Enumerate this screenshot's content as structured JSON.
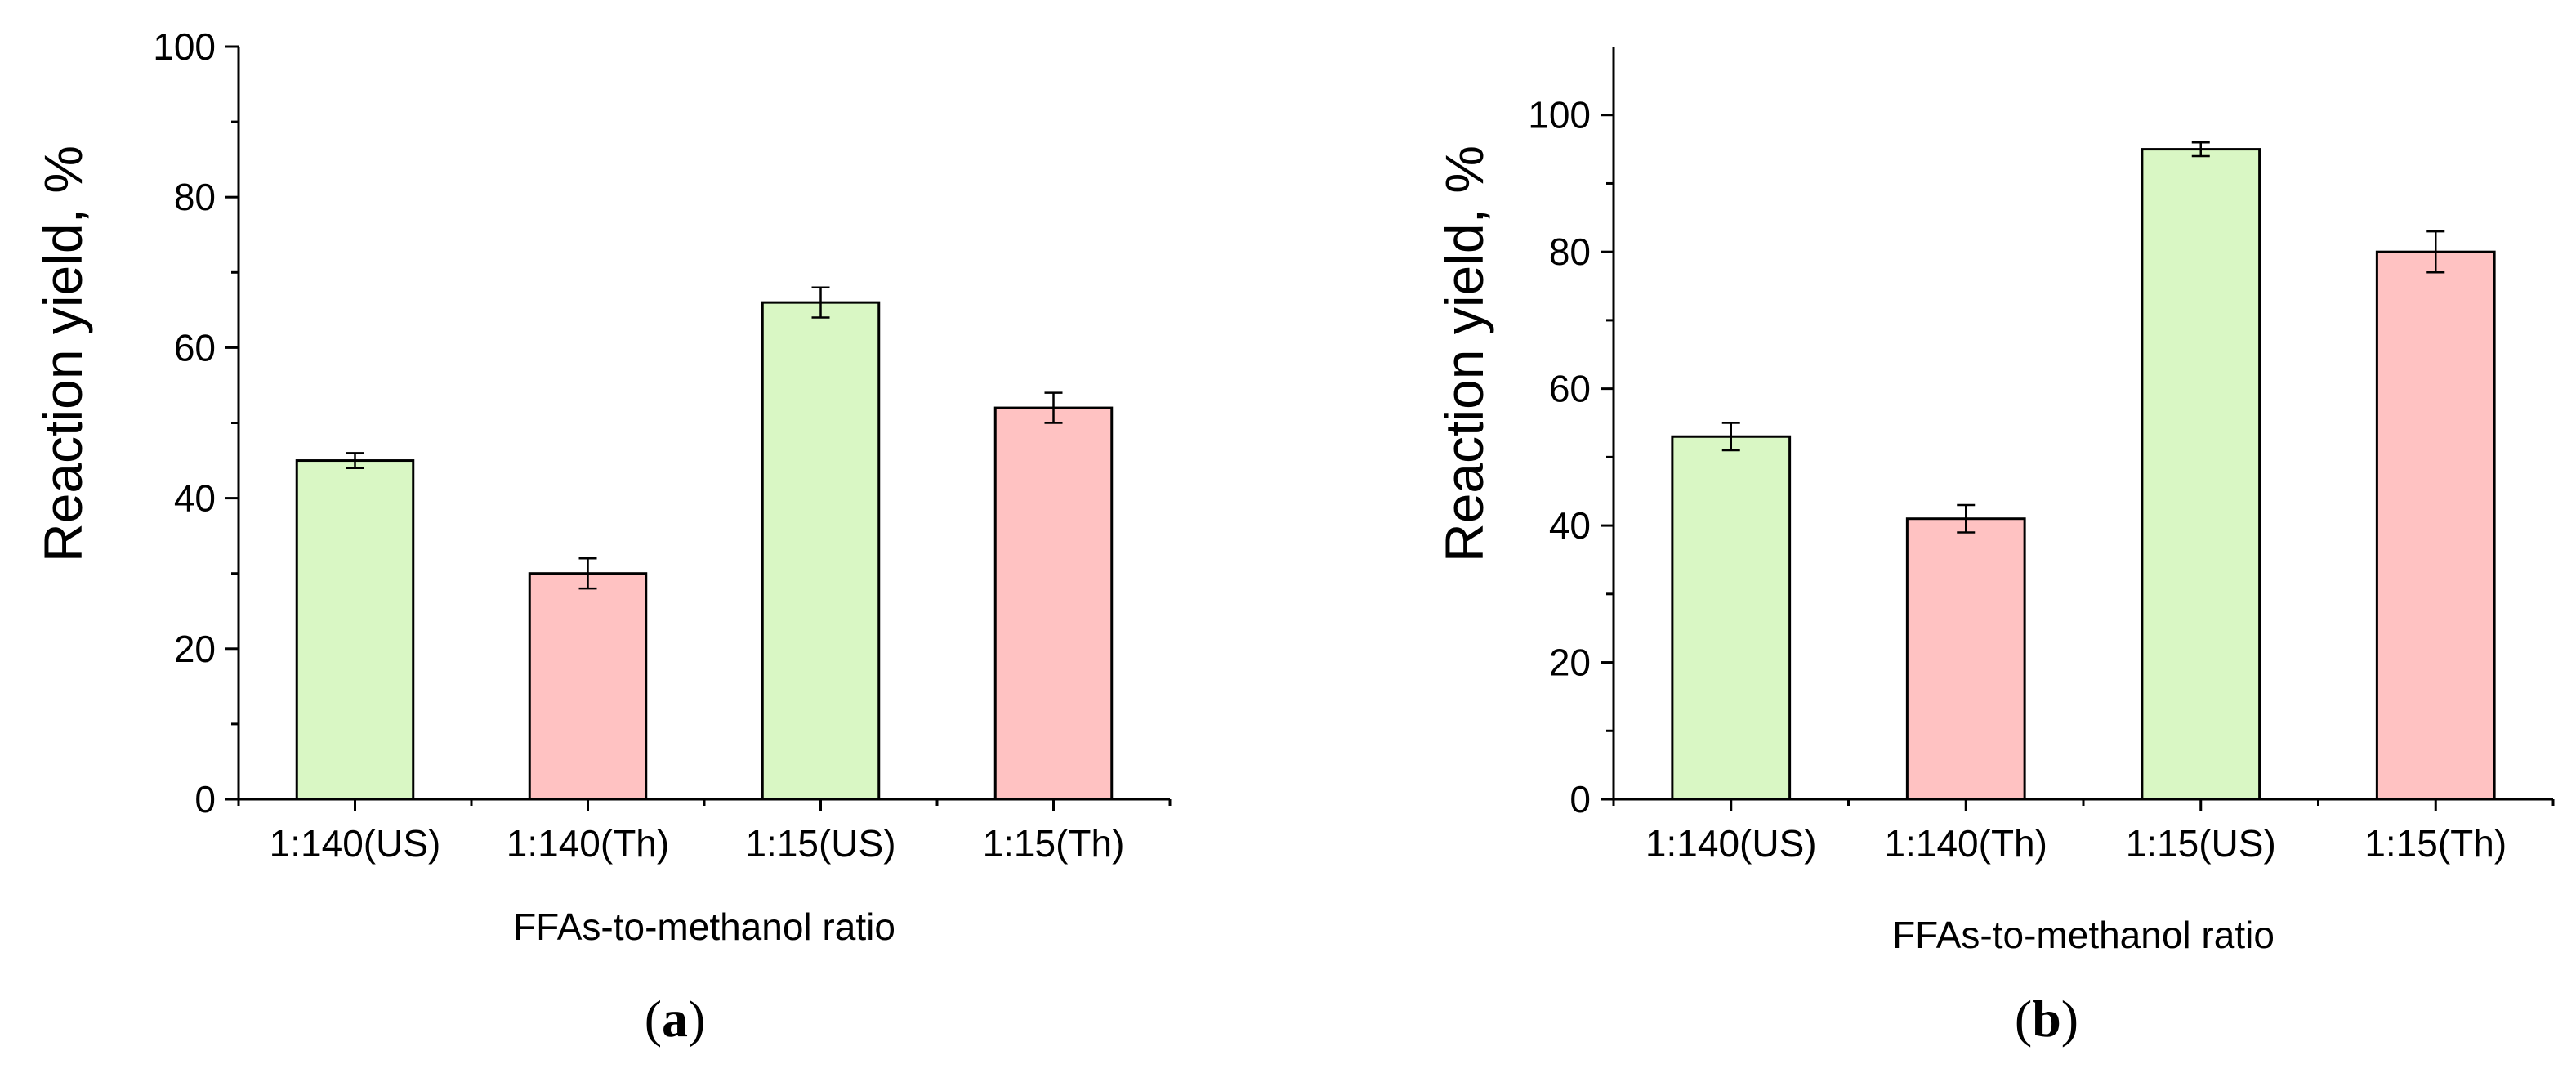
{
  "chart_data": [
    {
      "panel": "a",
      "type": "bar",
      "xlabel": "FFAs-to-methanol ratio",
      "ylabel": "Reaction yield, %",
      "ylim": [
        0,
        100
      ],
      "yticks": [
        0,
        20,
        40,
        60,
        80,
        100
      ],
      "categories": [
        "1:140(US)",
        "1:140(Th)",
        "1:15(US)",
        "1:15(Th)"
      ],
      "values": [
        45,
        30,
        66,
        52
      ],
      "errors": [
        1,
        2,
        2,
        2
      ],
      "bar_colors": [
        "#d9f7c4",
        "#ffc2c2",
        "#d9f7c4",
        "#ffc2c2"
      ],
      "grid": false
    },
    {
      "panel": "b",
      "type": "bar",
      "xlabel": "FFAs-to-methanol ratio",
      "ylabel": "Reaction yield, %",
      "ylim": [
        0,
        110
      ],
      "yticks": [
        0,
        20,
        40,
        60,
        80,
        100
      ],
      "categories": [
        "1:140(US)",
        "1:140(Th)",
        "1:15(US)",
        "1:15(Th)"
      ],
      "values": [
        53,
        41,
        95,
        80
      ],
      "errors": [
        2,
        2,
        1,
        3
      ],
      "bar_colors": [
        "#d9f7c4",
        "#ffc2c2",
        "#d9f7c4",
        "#ffc2c2"
      ],
      "grid": false
    }
  ]
}
